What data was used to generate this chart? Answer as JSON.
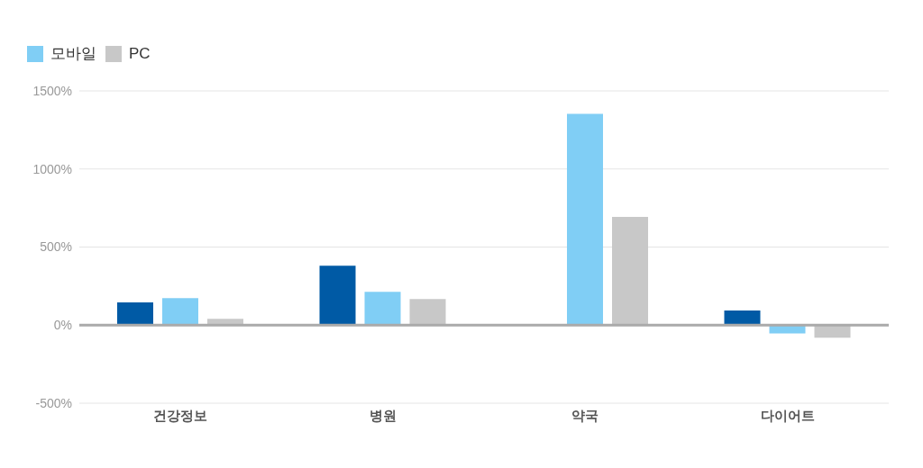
{
  "chart_data": {
    "type": "bar",
    "categories": [
      "건강정보",
      "병원",
      "약국",
      "다이어트"
    ],
    "series": [
      {
        "color": "#005aa5",
        "values": [
          145,
          380,
          null,
          93
        ]
      },
      {
        "name": "모바일",
        "color": "#80cef5",
        "values": [
          173,
          213,
          1353,
          -53
        ]
      },
      {
        "name": "PC",
        "color": "#c8c8c8",
        "values": [
          40,
          167,
          693,
          -80
        ]
      }
    ],
    "ylim": [
      -500,
      1500
    ],
    "yticks": [
      {
        "value": -500,
        "label": "-500%"
      },
      {
        "value": 0,
        "label": "0%"
      },
      {
        "value": 500,
        "label": "500%"
      },
      {
        "value": 1000,
        "label": "1000%"
      },
      {
        "value": 1500,
        "label": "1500%"
      }
    ],
    "ref_lines": [
      {
        "axis": "y",
        "value": 0,
        "color": "#aaaaaa"
      }
    ],
    "grid": "y",
    "legend": "top left"
  }
}
